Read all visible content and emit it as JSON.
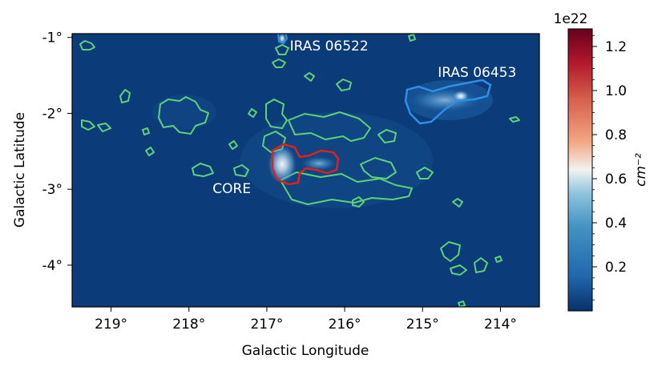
{
  "chart_data": {
    "type": "heatmap",
    "title": "",
    "xlabel": "Galactic Longitude",
    "ylabel": "Galactic Latitude",
    "xlim": [
      219.5,
      213.5
    ],
    "ylim": [
      -4.55,
      -0.95
    ],
    "x_ticks": [
      {
        "value": 219,
        "label": "219°"
      },
      {
        "value": 218,
        "label": "218°"
      },
      {
        "value": 217,
        "label": "217°"
      },
      {
        "value": 216,
        "label": "216°"
      },
      {
        "value": 215,
        "label": "215°"
      },
      {
        "value": 214,
        "label": "214°"
      }
    ],
    "y_ticks": [
      {
        "value": -1,
        "label": "-1°"
      },
      {
        "value": -2,
        "label": "-2°"
      },
      {
        "value": -3,
        "label": "-3°"
      },
      {
        "value": -4,
        "label": "-4°"
      }
    ],
    "background_color": "#0b3b78",
    "colormap": "RdBu_r",
    "colorbar": {
      "label": "cm⁻²",
      "offset_text": "1e22",
      "range": [
        0.0,
        1.28
      ],
      "ticks": [
        {
          "value": 0.2,
          "label": "0.2"
        },
        {
          "value": 0.4,
          "label": "0.4"
        },
        {
          "value": 0.6,
          "label": "0.6"
        },
        {
          "value": 0.8,
          "label": "0.8"
        },
        {
          "value": 1.0,
          "label": "1.0"
        },
        {
          "value": 1.2,
          "label": "1.2"
        }
      ]
    },
    "annotations": [
      {
        "text": "IRAS 06522",
        "l": 216.2,
        "b": -1.17
      },
      {
        "text": "IRAS 06453",
        "l": 214.3,
        "b": -1.52
      },
      {
        "text": "CORE",
        "l": 217.45,
        "b": -3.05
      }
    ],
    "contour_colors": {
      "general": "#5fd07a",
      "core": "#e0201b",
      "iras_06453": "#2f8fe6"
    },
    "regions": [
      {
        "name": "CORE",
        "color": "core",
        "center": [
          216.55,
          -2.7
        ],
        "peak": 1.0
      },
      {
        "name": "IRAS 06453",
        "color": "iras_06453",
        "center": [
          214.8,
          -1.95
        ],
        "peak": 1.2
      },
      {
        "name": "IRAS 06522",
        "color": "general",
        "center": [
          216.85,
          -1.08
        ],
        "peak": 0.5
      }
    ]
  }
}
